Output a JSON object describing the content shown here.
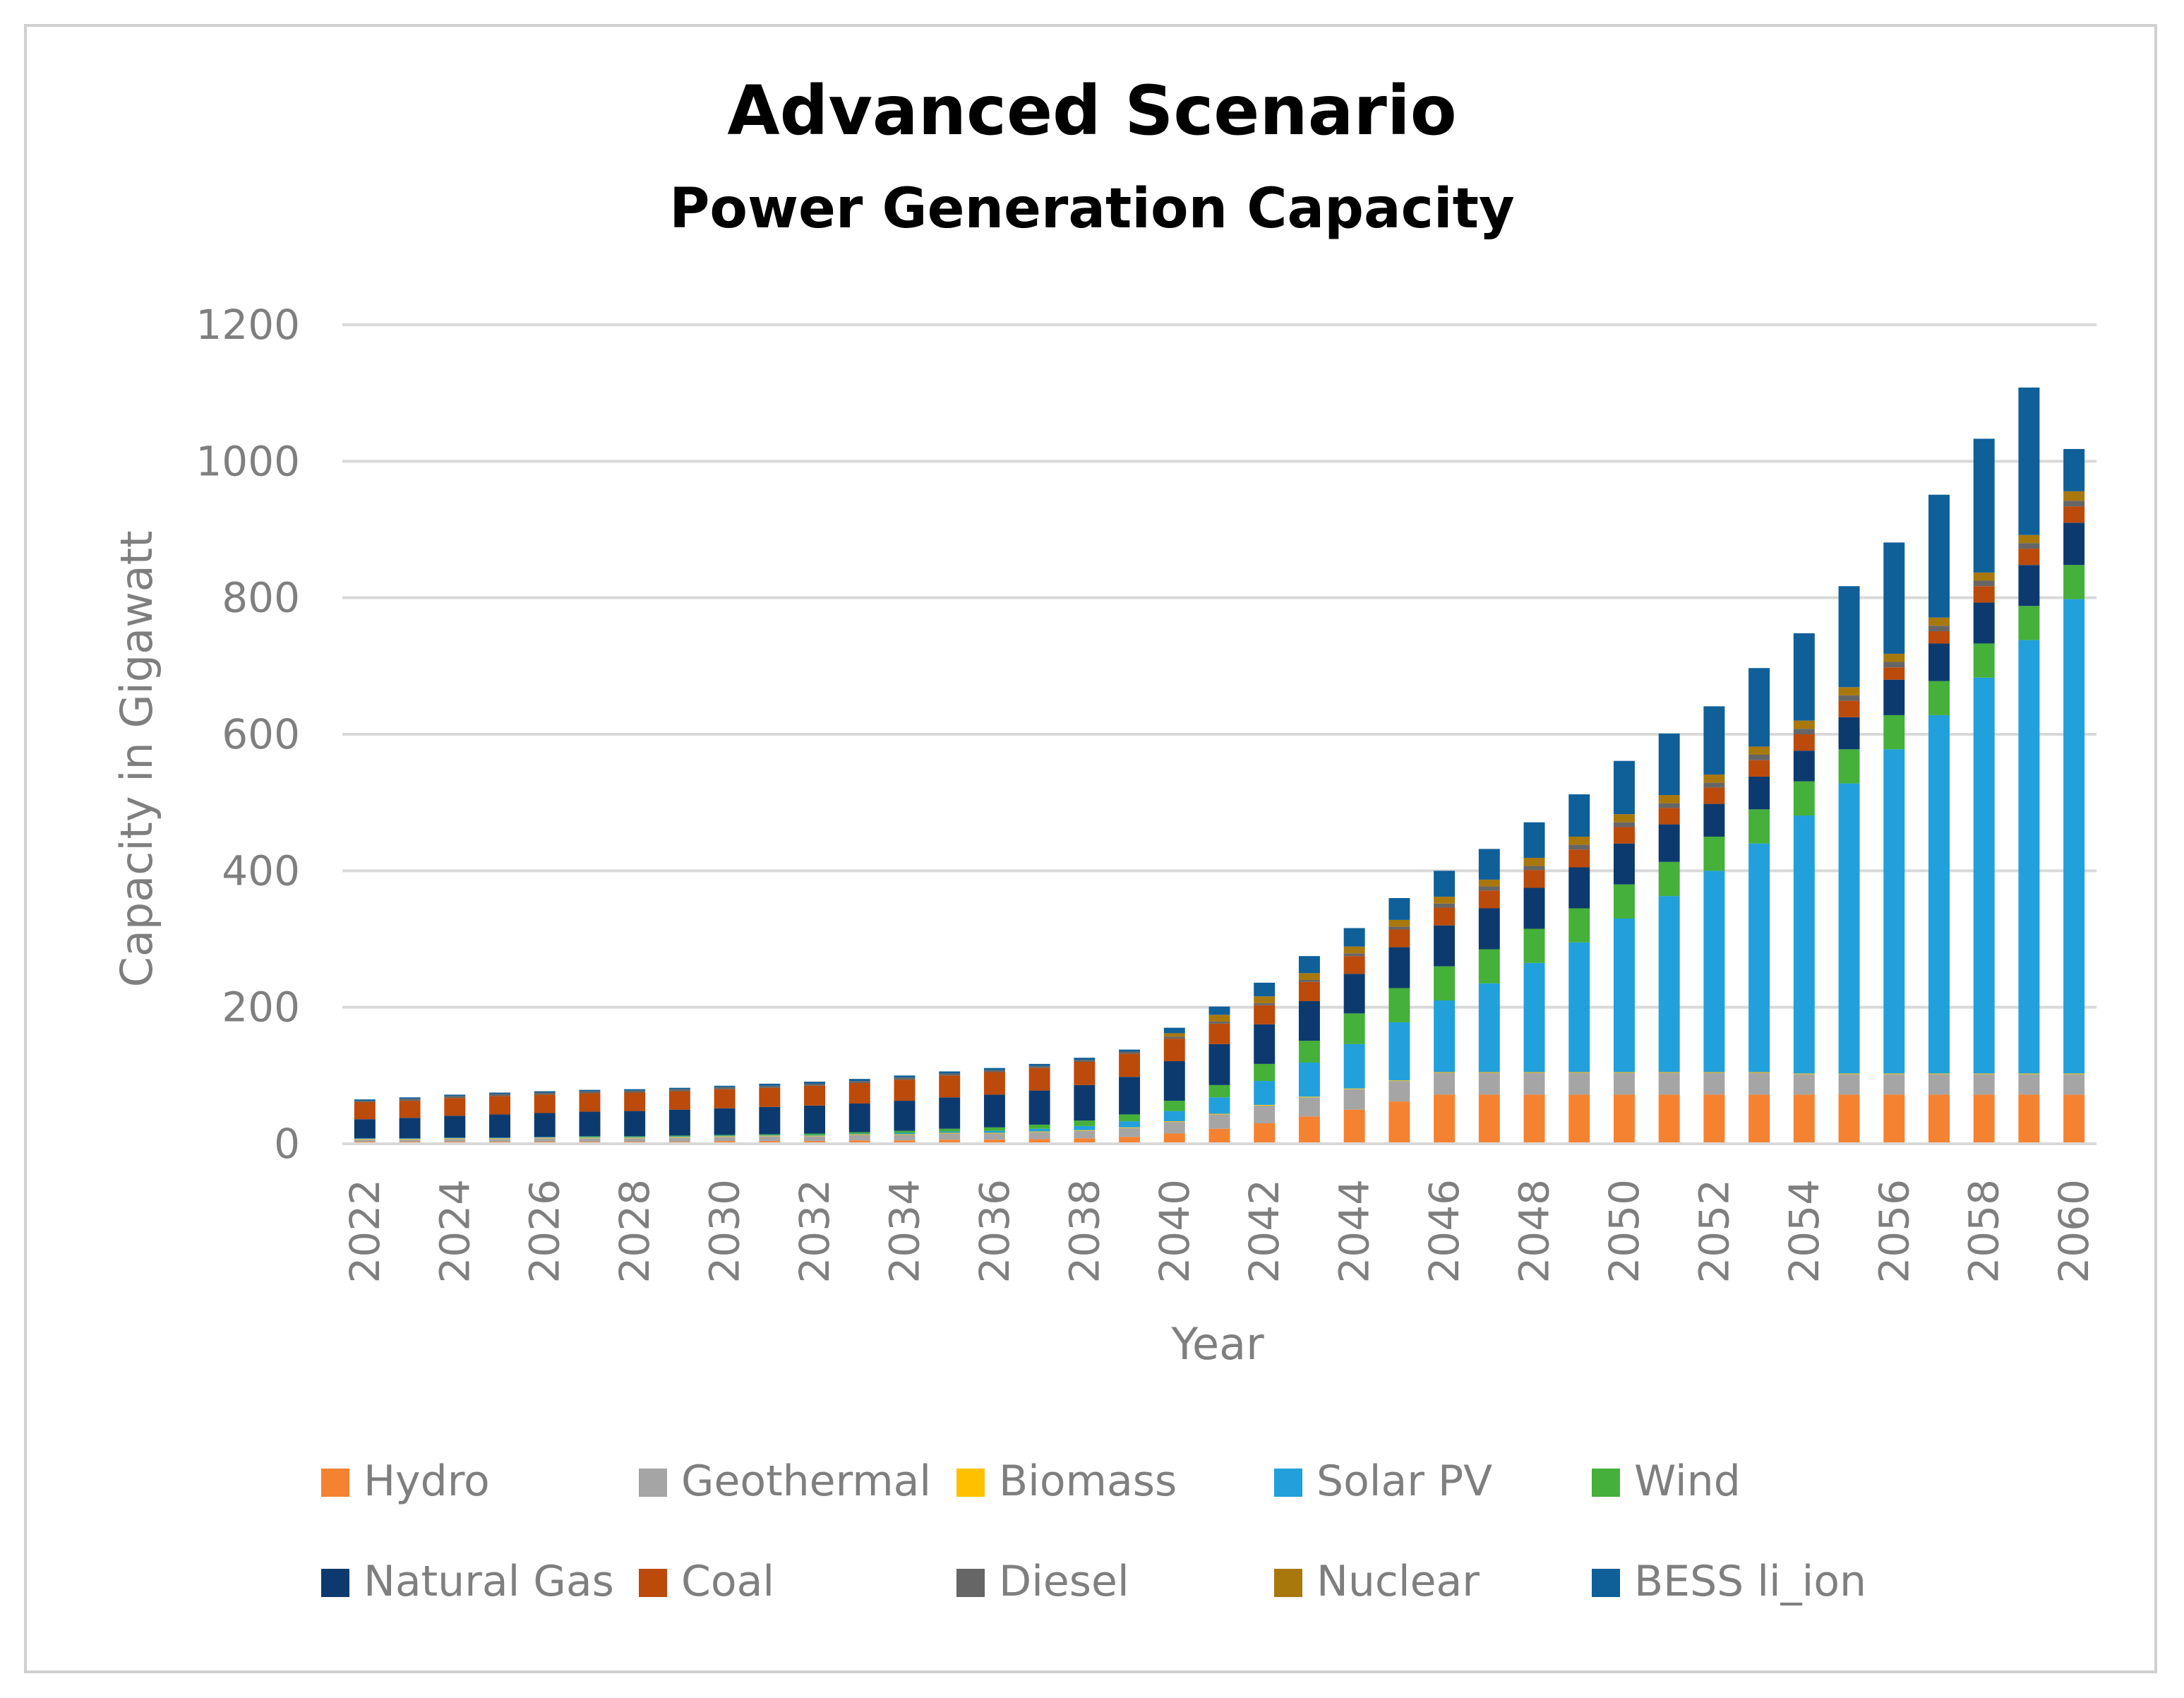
{
  "chart_data": {
    "type": "bar",
    "stacked": true,
    "title": "Advanced Scenario",
    "subtitle": "Power Generation Capacity",
    "xlabel": "Year",
    "ylabel": "Capacity in Gigawatt",
    "ylim": [
      0,
      1200
    ],
    "yticks": [
      "0",
      "200",
      "400",
      "600",
      "800",
      "1000",
      "1200"
    ],
    "grid": true,
    "legend": "bottom",
    "categories": [
      "2022",
      "2023",
      "2024",
      "2025",
      "2026",
      "2027",
      "2028",
      "2029",
      "2030",
      "2031",
      "2032",
      "2033",
      "2034",
      "2035",
      "2036",
      "2037",
      "2038",
      "2039",
      "2040",
      "2041",
      "2042",
      "2043",
      "2044",
      "2045",
      "2046",
      "2047",
      "2048",
      "2049",
      "2050",
      "2051",
      "2052",
      "2053",
      "2054",
      "2055",
      "2056",
      "2057",
      "2058",
      "2059",
      "2060"
    ],
    "xtick_labels": [
      "2022",
      "2024",
      "2026",
      "2028",
      "2030",
      "2032",
      "2034",
      "2036",
      "2038",
      "2040",
      "2042",
      "2044",
      "2046",
      "2048",
      "2050",
      "2052",
      "2054",
      "2056",
      "2058",
      "2060"
    ],
    "series": [
      {
        "name": "Hydro",
        "color": "#f58231",
        "values": [
          3,
          3,
          3,
          3,
          3,
          3,
          3,
          3,
          4,
          4,
          4,
          5,
          5,
          6,
          6,
          7,
          8,
          10,
          15,
          22,
          30,
          40,
          50,
          62,
          72,
          72,
          72,
          72,
          72,
          72,
          72,
          72,
          72,
          72,
          72,
          72,
          72,
          72,
          72
        ]
      },
      {
        "name": "Geothermal",
        "color": "#a5a5a5",
        "values": [
          3,
          3,
          4,
          4,
          5,
          5,
          5,
          6,
          6,
          7,
          7,
          8,
          8,
          9,
          9,
          10,
          11,
          13,
          17,
          21,
          26,
          28,
          30,
          30,
          32,
          32,
          32,
          32,
          32,
          32,
          32,
          32,
          30,
          30,
          30,
          30,
          30,
          30,
          30
        ]
      },
      {
        "name": "Biomass",
        "color": "#ffc000",
        "values": [
          1,
          1,
          1,
          1,
          1,
          1,
          1,
          1,
          1,
          1,
          1,
          1,
          1,
          1,
          1,
          1,
          1,
          1,
          1,
          1,
          1,
          1,
          1,
          1,
          1,
          1,
          1,
          1,
          1,
          1,
          1,
          1,
          1,
          1,
          1,
          1,
          1,
          1,
          1
        ]
      },
      {
        "name": "Solar PV",
        "color": "#21a0dc",
        "values": [
          1,
          1,
          1,
          1,
          1,
          1,
          1,
          1,
          1,
          1,
          1,
          1,
          2,
          2,
          3,
          4,
          6,
          9,
          15,
          24,
          35,
          50,
          65,
          85,
          105,
          130,
          160,
          190,
          225,
          258,
          295,
          335,
          378,
          425,
          475,
          525,
          580,
          635,
          695
        ]
      },
      {
        "name": "Wind",
        "color": "#45b03a",
        "values": [
          0,
          0,
          0,
          0,
          0,
          1,
          1,
          1,
          1,
          1,
          2,
          2,
          3,
          4,
          5,
          6,
          8,
          10,
          15,
          18,
          25,
          32,
          45,
          50,
          50,
          50,
          50,
          50,
          50,
          50,
          50,
          50,
          50,
          50,
          50,
          50,
          50,
          50,
          50
        ]
      },
      {
        "name": "Natural Gas",
        "color": "#0d3a6e",
        "values": [
          28,
          30,
          32,
          34,
          35,
          36,
          37,
          38,
          39,
          40,
          41,
          42,
          44,
          46,
          48,
          50,
          52,
          55,
          58,
          60,
          58,
          58,
          58,
          60,
          60,
          60,
          60,
          60,
          60,
          55,
          48,
          48,
          45,
          47,
          52,
          55,
          60,
          60,
          62
        ]
      },
      {
        "name": "Coal",
        "color": "#bb4a0b",
        "values": [
          25,
          25,
          26,
          27,
          27,
          27,
          27,
          27,
          28,
          28,
          29,
          30,
          31,
          32,
          33,
          33,
          34,
          34,
          33,
          30,
          28,
          28,
          26,
          26,
          26,
          26,
          26,
          26,
          24,
          24,
          24,
          24,
          24,
          24,
          18,
          18,
          24,
          24,
          24
        ]
      },
      {
        "name": "Diesel",
        "color": "#666666",
        "values": [
          2,
          3,
          3,
          3,
          3,
          3,
          3,
          3,
          3,
          3,
          3,
          3,
          3,
          3,
          3,
          3,
          3,
          3,
          3,
          3,
          3,
          3,
          4,
          4,
          6,
          6,
          6,
          7,
          7,
          7,
          7,
          8,
          8,
          8,
          8,
          8,
          8,
          8,
          8
        ]
      },
      {
        "name": "Nuclear",
        "color": "#a8780d",
        "values": [
          0,
          0,
          0,
          0,
          0,
          0,
          0,
          0,
          0,
          0,
          0,
          0,
          0,
          0,
          0,
          0,
          0,
          0,
          5,
          10,
          10,
          10,
          10,
          10,
          10,
          10,
          12,
          12,
          12,
          12,
          12,
          12,
          12,
          12,
          12,
          12,
          12,
          12,
          14
        ]
      },
      {
        "name": "BESS li_ion",
        "color": "#0f5f99",
        "values": [
          2,
          2,
          2,
          2,
          2,
          2,
          2,
          2,
          2,
          3,
          3,
          3,
          3,
          3,
          3,
          3,
          3,
          3,
          8,
          12,
          20,
          25,
          27,
          32,
          38,
          45,
          52,
          62,
          78,
          90,
          100,
          115,
          128,
          148,
          163,
          180,
          196,
          216,
          62
        ]
      }
    ]
  }
}
